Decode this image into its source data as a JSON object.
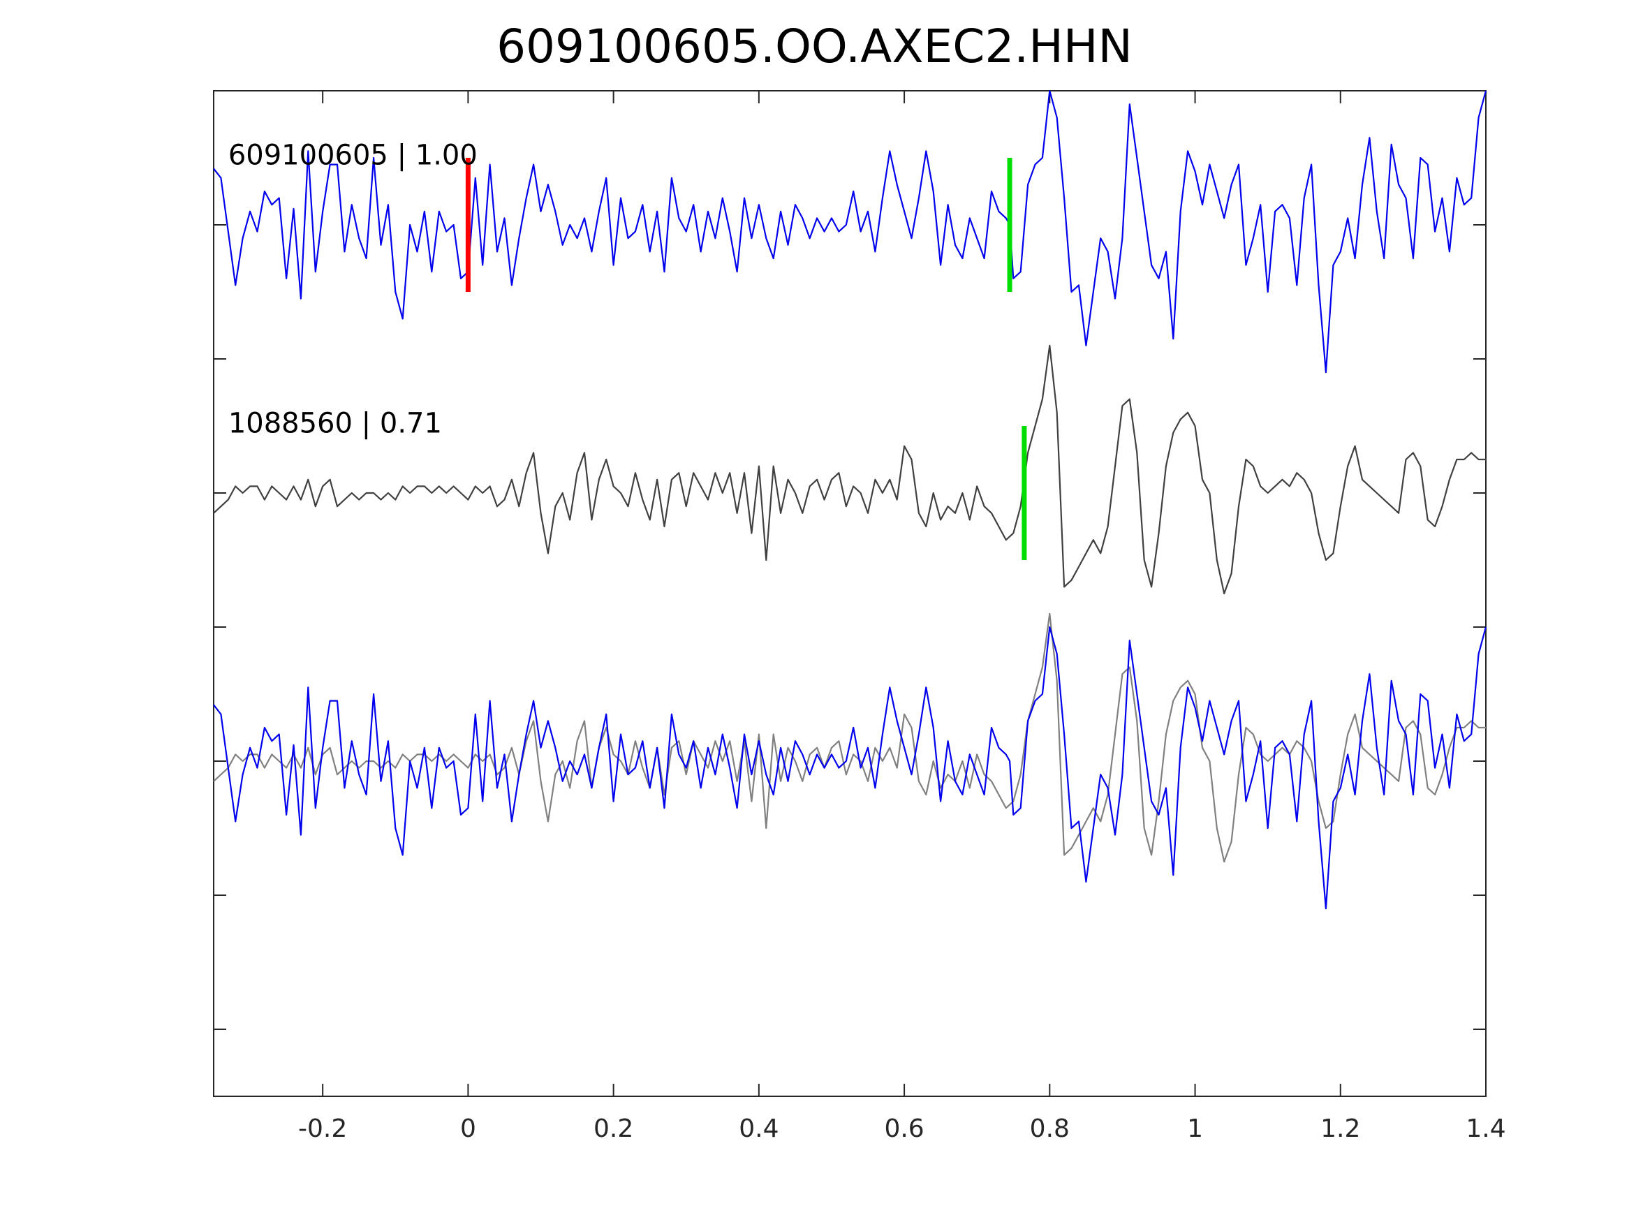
{
  "chart_data": {
    "type": "line",
    "title": "609100605.OO.AXEC2.HHN",
    "xlabel": "",
    "ylabel": "",
    "xlim": [
      -0.35,
      1.4
    ],
    "ylim": [
      -4.5,
      3.0
    ],
    "x_ticks": [
      -0.2,
      0,
      0.2,
      0.4,
      0.6,
      0.8,
      1,
      1.2,
      1.4
    ],
    "x_tick_labels": [
      "-0.2",
      "0",
      "0.2",
      "0.4",
      "0.6",
      "0.8",
      "1",
      "1.2",
      "1.4"
    ],
    "y_ticks": [
      -4,
      -3,
      -2,
      -1,
      0,
      1,
      2
    ],
    "grid": false,
    "series": [
      {
        "name": "609100605 | 1.00",
        "color": "#0000ee",
        "offset": 2
      },
      {
        "name": "1088560 | 0.71",
        "color": "#404040",
        "offset": 0
      },
      {
        "name": "",
        "color": "#0000ee",
        "offset": -2
      },
      {
        "name": "",
        "color": "#808080",
        "offset": -2
      }
    ],
    "annotations": {
      "trace_labels": [
        {
          "text": "609100605 | 1.00",
          "x": -0.33,
          "y": 2.45
        },
        {
          "text": "1088560 | 0.71",
          "x": -0.33,
          "y": 0.45
        }
      ],
      "picks": [
        {
          "trace": "609100605 | 1.00",
          "x": 0.0,
          "color": "#ff0000",
          "ymin": 1.5,
          "ymax": 2.5
        },
        {
          "trace": "609100605 | 1.00",
          "x": 0.745,
          "color": "#00dd00",
          "ymin": 1.5,
          "ymax": 2.5
        },
        {
          "trace": "1088560 | 0.71",
          "x": 0.765,
          "color": "#00dd00",
          "ymin": -0.5,
          "ymax": 0.5
        }
      ]
    },
    "top_waveform": [
      [
        -0.35,
        0.42
      ],
      [
        -0.34,
        0.35
      ],
      [
        -0.33,
        -0.05
      ],
      [
        -0.32,
        -0.45
      ],
      [
        -0.31,
        -0.1
      ],
      [
        -0.3,
        0.1
      ],
      [
        -0.29,
        -0.05
      ],
      [
        -0.28,
        0.25
      ],
      [
        -0.27,
        0.15
      ],
      [
        -0.26,
        0.2
      ],
      [
        -0.25,
        -0.4
      ],
      [
        -0.24,
        0.12
      ],
      [
        -0.23,
        -0.55
      ],
      [
        -0.22,
        0.55
      ],
      [
        -0.21,
        -0.35
      ],
      [
        -0.2,
        0.1
      ],
      [
        -0.19,
        0.45
      ],
      [
        -0.18,
        0.45
      ],
      [
        -0.17,
        -0.2
      ],
      [
        -0.16,
        0.15
      ],
      [
        -0.15,
        -0.1
      ],
      [
        -0.14,
        -0.25
      ],
      [
        -0.13,
        0.5
      ],
      [
        -0.12,
        -0.15
      ],
      [
        -0.11,
        0.15
      ],
      [
        -0.1,
        -0.5
      ],
      [
        -0.09,
        -0.7
      ],
      [
        -0.08,
        0.0
      ],
      [
        -0.07,
        -0.2
      ],
      [
        -0.06,
        0.1
      ],
      [
        -0.05,
        -0.35
      ],
      [
        -0.04,
        0.1
      ],
      [
        -0.03,
        -0.05
      ],
      [
        -0.02,
        0.0
      ],
      [
        -0.01,
        -0.4
      ],
      [
        0.0,
        -0.35
      ],
      [
        0.01,
        0.35
      ],
      [
        0.02,
        -0.3
      ],
      [
        0.03,
        0.45
      ],
      [
        0.04,
        -0.2
      ],
      [
        0.05,
        0.05
      ],
      [
        0.06,
        -0.45
      ],
      [
        0.07,
        -0.1
      ],
      [
        0.08,
        0.2
      ],
      [
        0.09,
        0.45
      ],
      [
        0.1,
        0.1
      ],
      [
        0.11,
        0.3
      ],
      [
        0.12,
        0.1
      ],
      [
        0.13,
        -0.15
      ],
      [
        0.14,
        0.0
      ],
      [
        0.15,
        -0.1
      ],
      [
        0.16,
        0.05
      ],
      [
        0.17,
        -0.2
      ],
      [
        0.18,
        0.1
      ],
      [
        0.19,
        0.35
      ],
      [
        0.2,
        -0.3
      ],
      [
        0.21,
        0.2
      ],
      [
        0.22,
        -0.1
      ],
      [
        0.23,
        -0.05
      ],
      [
        0.24,
        0.15
      ],
      [
        0.25,
        -0.2
      ],
      [
        0.26,
        0.1
      ],
      [
        0.27,
        -0.35
      ],
      [
        0.28,
        0.35
      ],
      [
        0.29,
        0.05
      ],
      [
        0.3,
        -0.05
      ],
      [
        0.31,
        0.15
      ],
      [
        0.32,
        -0.2
      ],
      [
        0.33,
        0.1
      ],
      [
        0.34,
        -0.1
      ],
      [
        0.35,
        0.2
      ],
      [
        0.36,
        -0.05
      ],
      [
        0.37,
        -0.35
      ],
      [
        0.38,
        0.2
      ],
      [
        0.39,
        -0.1
      ],
      [
        0.4,
        0.15
      ],
      [
        0.41,
        -0.1
      ],
      [
        0.42,
        -0.25
      ],
      [
        0.43,
        0.1
      ],
      [
        0.44,
        -0.15
      ],
      [
        0.45,
        0.15
      ],
      [
        0.46,
        0.05
      ],
      [
        0.47,
        -0.1
      ],
      [
        0.48,
        0.05
      ],
      [
        0.49,
        -0.05
      ],
      [
        0.5,
        0.05
      ],
      [
        0.51,
        -0.05
      ],
      [
        0.52,
        0.0
      ],
      [
        0.53,
        0.25
      ],
      [
        0.54,
        -0.05
      ],
      [
        0.55,
        0.1
      ],
      [
        0.56,
        -0.2
      ],
      [
        0.57,
        0.2
      ],
      [
        0.58,
        0.55
      ],
      [
        0.59,
        0.3
      ],
      [
        0.6,
        0.1
      ],
      [
        0.61,
        -0.1
      ],
      [
        0.62,
        0.2
      ],
      [
        0.63,
        0.55
      ],
      [
        0.64,
        0.25
      ],
      [
        0.65,
        -0.3
      ],
      [
        0.66,
        0.15
      ],
      [
        0.67,
        -0.15
      ],
      [
        0.68,
        -0.25
      ],
      [
        0.69,
        0.05
      ],
      [
        0.7,
        -0.1
      ],
      [
        0.71,
        -0.25
      ],
      [
        0.72,
        0.25
      ],
      [
        0.73,
        0.1
      ],
      [
        0.74,
        0.05
      ],
      [
        0.745,
        0.0
      ],
      [
        0.75,
        -0.4
      ],
      [
        0.76,
        -0.35
      ],
      [
        0.77,
        0.3
      ],
      [
        0.78,
        0.45
      ],
      [
        0.79,
        0.5
      ],
      [
        0.8,
        1.0
      ],
      [
        0.81,
        0.8
      ],
      [
        0.82,
        0.2
      ],
      [
        0.83,
        -0.5
      ],
      [
        0.84,
        -0.45
      ],
      [
        0.85,
        -0.9
      ],
      [
        0.86,
        -0.5
      ],
      [
        0.87,
        -0.1
      ],
      [
        0.88,
        -0.2
      ],
      [
        0.89,
        -0.55
      ],
      [
        0.9,
        -0.1
      ],
      [
        0.91,
        0.9
      ],
      [
        0.92,
        0.5
      ],
      [
        0.93,
        0.1
      ],
      [
        0.94,
        -0.3
      ],
      [
        0.95,
        -0.4
      ],
      [
        0.96,
        -0.2
      ],
      [
        0.97,
        -0.85
      ],
      [
        0.98,
        0.1
      ],
      [
        0.99,
        0.55
      ],
      [
        1.0,
        0.4
      ],
      [
        1.01,
        0.15
      ],
      [
        1.02,
        0.45
      ],
      [
        1.03,
        0.25
      ],
      [
        1.04,
        0.05
      ],
      [
        1.05,
        0.3
      ],
      [
        1.06,
        0.45
      ],
      [
        1.07,
        -0.3
      ],
      [
        1.08,
        -0.1
      ],
      [
        1.09,
        0.15
      ],
      [
        1.1,
        -0.5
      ],
      [
        1.11,
        0.1
      ],
      [
        1.12,
        0.15
      ],
      [
        1.13,
        0.05
      ],
      [
        1.14,
        -0.45
      ],
      [
        1.15,
        0.2
      ],
      [
        1.16,
        0.45
      ],
      [
        1.17,
        -0.45
      ],
      [
        1.18,
        -1.1
      ],
      [
        1.19,
        -0.3
      ],
      [
        1.2,
        -0.2
      ],
      [
        1.21,
        0.05
      ],
      [
        1.22,
        -0.25
      ],
      [
        1.23,
        0.3
      ],
      [
        1.24,
        0.65
      ],
      [
        1.25,
        0.1
      ],
      [
        1.26,
        -0.25
      ],
      [
        1.27,
        0.6
      ],
      [
        1.28,
        0.3
      ],
      [
        1.29,
        0.2
      ],
      [
        1.3,
        -0.25
      ],
      [
        1.31,
        0.5
      ],
      [
        1.32,
        0.45
      ],
      [
        1.33,
        -0.05
      ],
      [
        1.34,
        0.2
      ],
      [
        1.35,
        -0.2
      ],
      [
        1.36,
        0.35
      ],
      [
        1.37,
        0.15
      ],
      [
        1.38,
        0.2
      ],
      [
        1.39,
        0.8
      ],
      [
        1.4,
        1.0
      ]
    ],
    "middle_waveform": [
      [
        -0.35,
        -0.15
      ],
      [
        -0.34,
        -0.1
      ],
      [
        -0.33,
        -0.05
      ],
      [
        -0.32,
        0.05
      ],
      [
        -0.31,
        0.0
      ],
      [
        -0.3,
        0.05
      ],
      [
        -0.29,
        0.05
      ],
      [
        -0.28,
        -0.05
      ],
      [
        -0.27,
        0.05
      ],
      [
        -0.26,
        0.0
      ],
      [
        -0.25,
        -0.05
      ],
      [
        -0.24,
        0.05
      ],
      [
        -0.23,
        -0.05
      ],
      [
        -0.22,
        0.1
      ],
      [
        -0.21,
        -0.1
      ],
      [
        -0.2,
        0.05
      ],
      [
        -0.19,
        0.1
      ],
      [
        -0.18,
        -0.1
      ],
      [
        -0.17,
        -0.05
      ],
      [
        -0.16,
        0.0
      ],
      [
        -0.15,
        -0.05
      ],
      [
        -0.14,
        0.0
      ],
      [
        -0.13,
        0.0
      ],
      [
        -0.12,
        -0.05
      ],
      [
        -0.11,
        0.0
      ],
      [
        -0.1,
        -0.05
      ],
      [
        -0.09,
        0.05
      ],
      [
        -0.08,
        0.0
      ],
      [
        -0.07,
        0.05
      ],
      [
        -0.06,
        0.05
      ],
      [
        -0.05,
        0.0
      ],
      [
        -0.04,
        0.05
      ],
      [
        -0.03,
        0.0
      ],
      [
        -0.02,
        0.05
      ],
      [
        -0.01,
        0.0
      ],
      [
        0.0,
        -0.05
      ],
      [
        0.01,
        0.05
      ],
      [
        0.02,
        0.0
      ],
      [
        0.03,
        0.05
      ],
      [
        0.04,
        -0.1
      ],
      [
        0.05,
        -0.05
      ],
      [
        0.06,
        0.1
      ],
      [
        0.07,
        -0.1
      ],
      [
        0.08,
        0.15
      ],
      [
        0.09,
        0.3
      ],
      [
        0.1,
        -0.15
      ],
      [
        0.11,
        -0.45
      ],
      [
        0.12,
        -0.1
      ],
      [
        0.13,
        0.0
      ],
      [
        0.14,
        -0.2
      ],
      [
        0.15,
        0.15
      ],
      [
        0.16,
        0.3
      ],
      [
        0.17,
        -0.2
      ],
      [
        0.18,
        0.1
      ],
      [
        0.19,
        0.25
      ],
      [
        0.2,
        0.05
      ],
      [
        0.21,
        0.0
      ],
      [
        0.22,
        -0.1
      ],
      [
        0.23,
        0.15
      ],
      [
        0.24,
        -0.05
      ],
      [
        0.25,
        -0.2
      ],
      [
        0.26,
        0.1
      ],
      [
        0.27,
        -0.25
      ],
      [
        0.28,
        0.1
      ],
      [
        0.29,
        0.15
      ],
      [
        0.3,
        -0.1
      ],
      [
        0.31,
        0.15
      ],
      [
        0.32,
        0.05
      ],
      [
        0.33,
        -0.05
      ],
      [
        0.34,
        0.15
      ],
      [
        0.35,
        0.0
      ],
      [
        0.36,
        0.15
      ],
      [
        0.37,
        -0.15
      ],
      [
        0.38,
        0.15
      ],
      [
        0.39,
        -0.3
      ],
      [
        0.4,
        0.2
      ],
      [
        0.41,
        -0.5
      ],
      [
        0.42,
        0.2
      ],
      [
        0.43,
        -0.15
      ],
      [
        0.44,
        0.1
      ],
      [
        0.45,
        0.0
      ],
      [
        0.46,
        -0.15
      ],
      [
        0.47,
        0.05
      ],
      [
        0.48,
        0.1
      ],
      [
        0.49,
        -0.05
      ],
      [
        0.5,
        0.1
      ],
      [
        0.51,
        0.15
      ],
      [
        0.52,
        -0.1
      ],
      [
        0.53,
        0.05
      ],
      [
        0.54,
        0.0
      ],
      [
        0.55,
        -0.15
      ],
      [
        0.56,
        0.1
      ],
      [
        0.57,
        0.0
      ],
      [
        0.58,
        0.1
      ],
      [
        0.59,
        -0.05
      ],
      [
        0.6,
        0.35
      ],
      [
        0.61,
        0.25
      ],
      [
        0.62,
        -0.15
      ],
      [
        0.63,
        -0.25
      ],
      [
        0.64,
        0.0
      ],
      [
        0.65,
        -0.2
      ],
      [
        0.66,
        -0.1
      ],
      [
        0.67,
        -0.15
      ],
      [
        0.68,
        0.0
      ],
      [
        0.69,
        -0.2
      ],
      [
        0.7,
        0.05
      ],
      [
        0.71,
        -0.1
      ],
      [
        0.72,
        -0.15
      ],
      [
        0.73,
        -0.25
      ],
      [
        0.74,
        -0.35
      ],
      [
        0.75,
        -0.3
      ],
      [
        0.76,
        -0.1
      ],
      [
        0.77,
        0.3
      ],
      [
        0.78,
        0.5
      ],
      [
        0.79,
        0.7
      ],
      [
        0.8,
        1.1
      ],
      [
        0.81,
        0.6
      ],
      [
        0.82,
        -0.7
      ],
      [
        0.83,
        -0.65
      ],
      [
        0.84,
        -0.55
      ],
      [
        0.85,
        -0.45
      ],
      [
        0.86,
        -0.35
      ],
      [
        0.87,
        -0.45
      ],
      [
        0.88,
        -0.25
      ],
      [
        0.89,
        0.2
      ],
      [
        0.9,
        0.65
      ],
      [
        0.91,
        0.7
      ],
      [
        0.92,
        0.3
      ],
      [
        0.93,
        -0.5
      ],
      [
        0.94,
        -0.7
      ],
      [
        0.95,
        -0.3
      ],
      [
        0.96,
        0.2
      ],
      [
        0.97,
        0.45
      ],
      [
        0.98,
        0.55
      ],
      [
        0.99,
        0.6
      ],
      [
        1.0,
        0.5
      ],
      [
        1.01,
        0.1
      ],
      [
        1.02,
        0.0
      ],
      [
        1.03,
        -0.5
      ],
      [
        1.04,
        -0.75
      ],
      [
        1.05,
        -0.6
      ],
      [
        1.06,
        -0.1
      ],
      [
        1.07,
        0.25
      ],
      [
        1.08,
        0.2
      ],
      [
        1.09,
        0.05
      ],
      [
        1.1,
        0.0
      ],
      [
        1.11,
        0.05
      ],
      [
        1.12,
        0.1
      ],
      [
        1.13,
        0.05
      ],
      [
        1.14,
        0.15
      ],
      [
        1.15,
        0.1
      ],
      [
        1.16,
        0.0
      ],
      [
        1.17,
        -0.3
      ],
      [
        1.18,
        -0.5
      ],
      [
        1.19,
        -0.45
      ],
      [
        1.2,
        -0.1
      ],
      [
        1.21,
        0.2
      ],
      [
        1.22,
        0.35
      ],
      [
        1.23,
        0.1
      ],
      [
        1.24,
        0.05
      ],
      [
        1.25,
        0.0
      ],
      [
        1.26,
        -0.05
      ],
      [
        1.27,
        -0.1
      ],
      [
        1.28,
        -0.15
      ],
      [
        1.29,
        0.25
      ],
      [
        1.3,
        0.3
      ],
      [
        1.31,
        0.2
      ],
      [
        1.32,
        -0.2
      ],
      [
        1.33,
        -0.25
      ],
      [
        1.34,
        -0.1
      ],
      [
        1.35,
        0.1
      ],
      [
        1.36,
        0.25
      ],
      [
        1.37,
        0.25
      ],
      [
        1.38,
        0.3
      ],
      [
        1.39,
        0.25
      ],
      [
        1.4,
        0.25
      ]
    ]
  }
}
